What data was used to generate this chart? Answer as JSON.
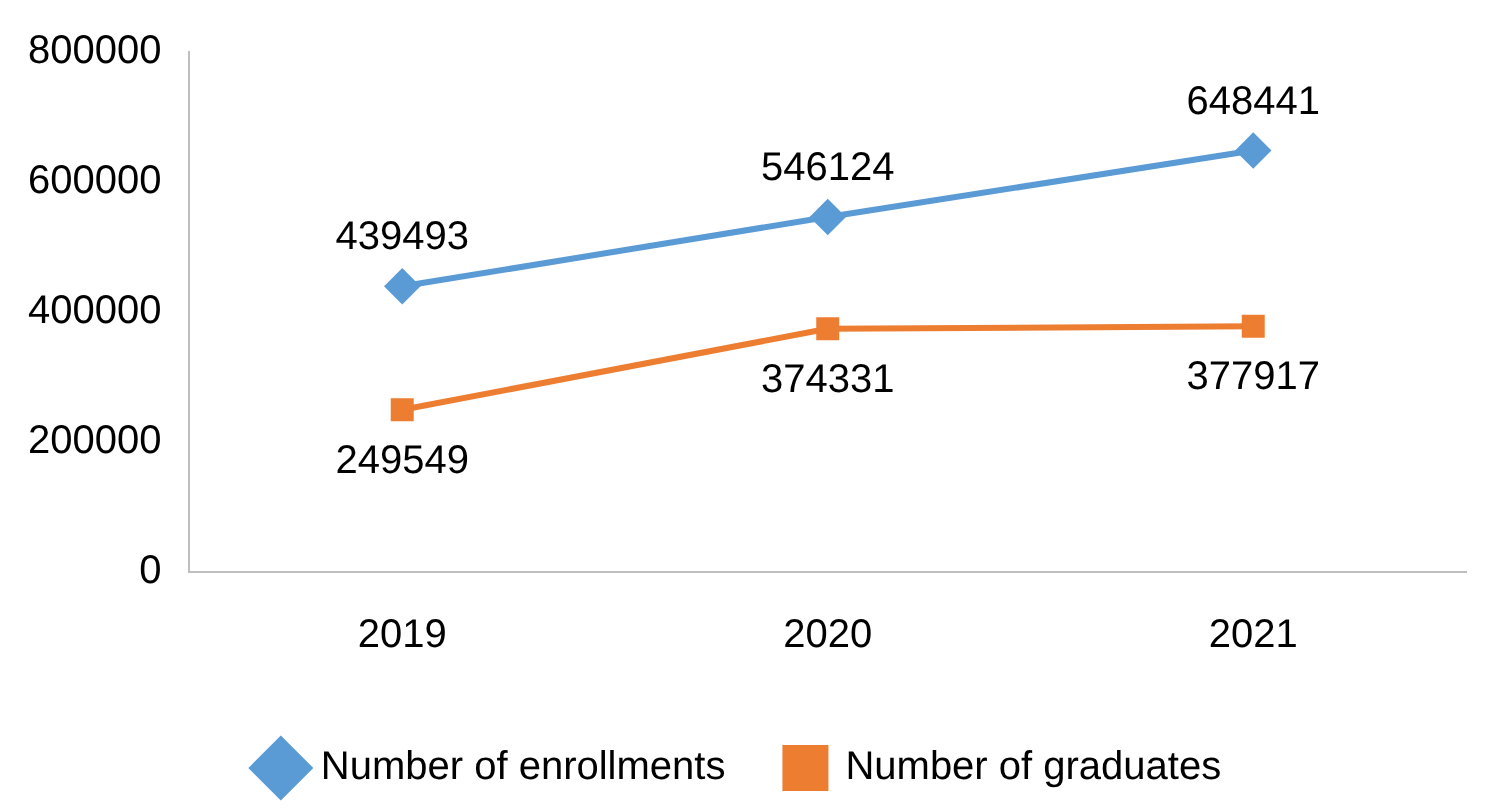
{
  "chart_data": {
    "type": "line",
    "categories": [
      "2019",
      "2020",
      "2021"
    ],
    "series": [
      {
        "name": "Number of enrollments",
        "color": "#5b9bd5",
        "values": [
          439493,
          546124,
          648441
        ],
        "marker": "diamond"
      },
      {
        "name": "Number of graduates",
        "color": "#ed7d31",
        "values": [
          249549,
          374331,
          377917
        ],
        "marker": "square"
      }
    ],
    "ylim": [
      0,
      800000
    ],
    "yticks": [
      0,
      200000,
      400000,
      600000,
      800000
    ],
    "grid": false,
    "legend": "bottom",
    "data_labels": true,
    "line_style": "solid"
  }
}
